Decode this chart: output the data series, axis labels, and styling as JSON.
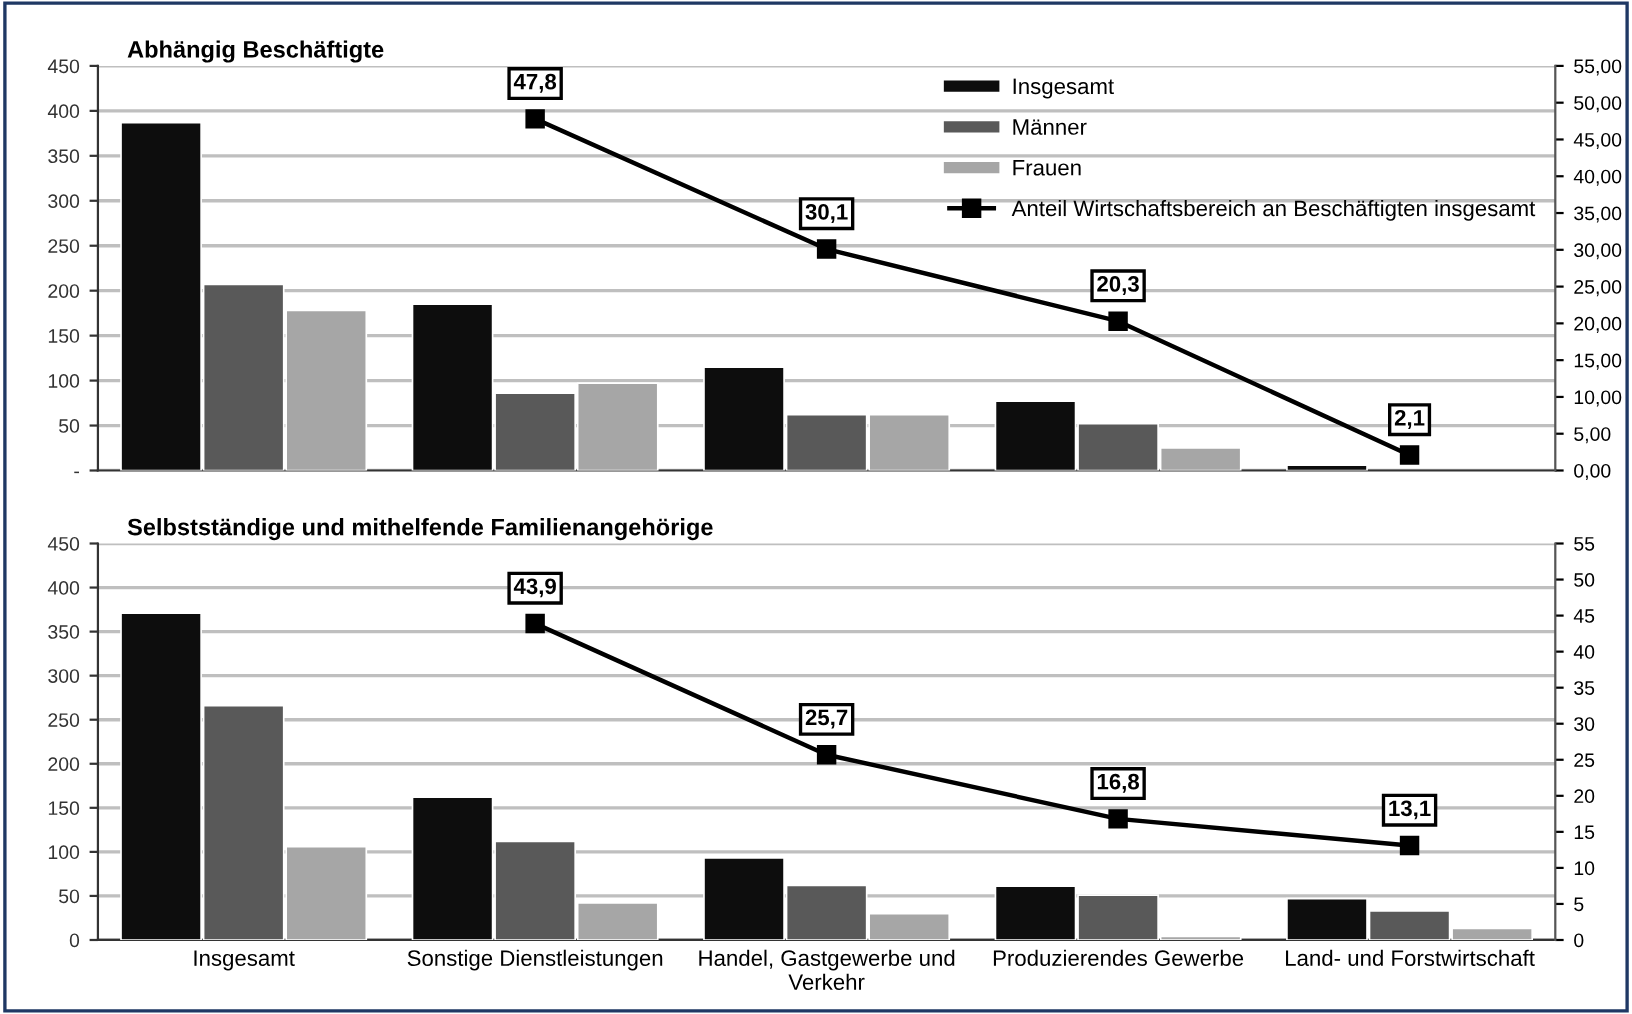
{
  "chart_data": [
    {
      "type": "bar",
      "title": "Abhängig Beschäftigte",
      "categories": [
        null,
        null,
        null,
        null,
        null
      ],
      "series": [
        {
          "name": "Insgesamt",
          "color": "#0d0d0d",
          "values": [
            387,
            185,
            115,
            77,
            6
          ]
        },
        {
          "name": "Männer",
          "color": "#595959",
          "values": [
            207,
            86,
            62,
            52,
            null
          ]
        },
        {
          "name": "Frauen",
          "color": "#a6a6a6",
          "values": [
            178,
            97,
            62,
            25,
            null
          ]
        },
        {
          "name": "Anteil Wirtschaftsbereich an Beschäftigten insgesamt",
          "type": "line",
          "axis": "y2",
          "color": "#000000",
          "values": [
            null,
            47.8,
            30.1,
            20.3,
            2.1
          ],
          "value_labels": [
            null,
            "47,8",
            "30,1",
            "20,3",
            "2,1"
          ]
        }
      ],
      "ylim": [
        0,
        450
      ],
      "yticks": [
        {
          "value": 0,
          "label": "-"
        },
        50,
        100,
        150,
        200,
        250,
        300,
        350,
        400,
        450
      ],
      "y2lim": [
        0,
        55
      ],
      "y2ticks": [
        {
          "value": 0,
          "label": "0,00"
        },
        {
          "value": 5,
          "label": "5,00"
        },
        {
          "value": 10,
          "label": "10,00"
        },
        {
          "value": 15,
          "label": "15,00"
        },
        {
          "value": 20,
          "label": "20,00"
        },
        {
          "value": 25,
          "label": "25,00"
        },
        {
          "value": 30,
          "label": "30,00"
        },
        {
          "value": 35,
          "label": "35,00"
        },
        {
          "value": 40,
          "label": "40,00"
        },
        {
          "value": 45,
          "label": "45,00"
        },
        {
          "value": 50,
          "label": "50,00"
        },
        {
          "value": 55,
          "label": "55,00"
        }
      ],
      "grid": "y",
      "legend": "top right",
      "marker": "square",
      "tick_labels": "y"
    },
    {
      "type": "bar",
      "title": "Selbstständige und mithelfende Familienangehörige",
      "categories": [
        "Insgesamt",
        "Sonstige Dienstleistungen",
        "Handel, Gastgewerbe und\nVerkehr",
        "Produzierendes Gewerbe",
        "Land- und Forstwirtschaft"
      ],
      "series": [
        {
          "color": "#0d0d0d",
          "values": [
            371,
            162,
            93,
            61,
            47
          ]
        },
        {
          "color": "#595959",
          "values": [
            266,
            112,
            62,
            51,
            33
          ]
        },
        {
          "color": "#a6a6a6",
          "values": [
            106,
            42,
            30,
            4,
            13
          ]
        },
        {
          "type": "line",
          "axis": "y2",
          "color": "#000000",
          "values": [
            null,
            43.9,
            25.7,
            16.8,
            13.1
          ],
          "value_labels": [
            null,
            "43,9",
            "25,7",
            "16,8",
            "13,1"
          ]
        }
      ],
      "ylim": [
        0,
        450
      ],
      "yticks": [
        0,
        50,
        100,
        150,
        200,
        250,
        300,
        350,
        400,
        450
      ],
      "y2lim": [
        0,
        55
      ],
      "y2ticks": [
        0,
        5,
        10,
        15,
        20,
        25,
        30,
        35,
        40,
        45,
        50,
        55
      ],
      "grid": "y",
      "marker": "square"
    }
  ]
}
